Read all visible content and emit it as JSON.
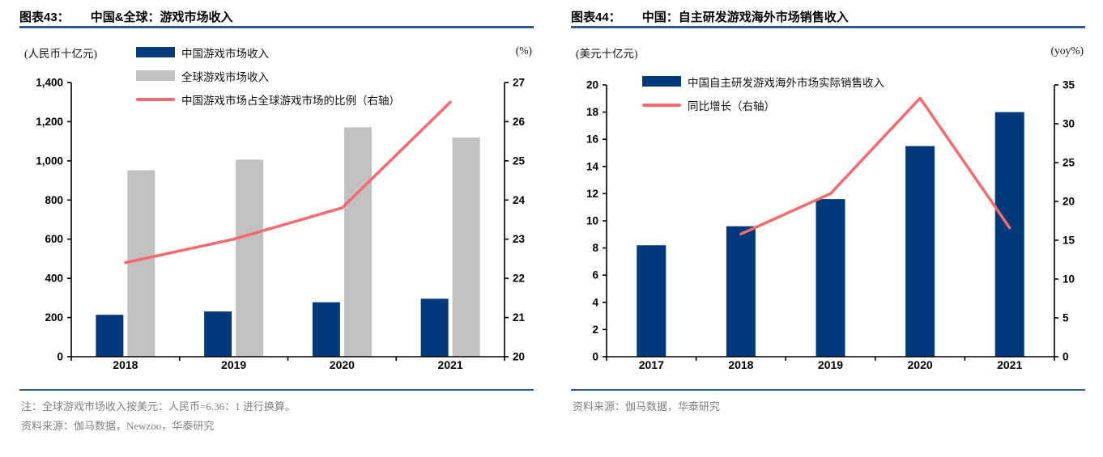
{
  "theme": {
    "rule_blue": "#2e5a93",
    "note_gray": "#808080",
    "axis_black": "#000000",
    "bar_navy": "#003a7a",
    "bar_gray": "#c1c1c1",
    "line_salmon": "#f8696b"
  },
  "chart_data": [
    {
      "figure_label": "图表43：",
      "title": "中国&全球：游戏市场收入",
      "type": "bar+line",
      "categories": [
        "2018",
        "2019",
        "2020",
        "2021"
      ],
      "bar_series": [
        {
          "name": "中国游戏市场收入",
          "color": "#003a7a",
          "values": [
            214,
            231,
            278,
            296
          ]
        },
        {
          "name": "全球游戏市场收入",
          "color": "#c1c1c1",
          "values": [
            952,
            1006,
            1171,
            1119
          ]
        }
      ],
      "line_series": [
        {
          "name": "中国游戏市场占全球游戏市场的比例（右轴）",
          "color": "#f8696b",
          "axis": "right",
          "values": [
            22.4,
            23.0,
            23.8,
            26.5
          ]
        }
      ],
      "left_axis": {
        "unit": "(人民币十亿元)",
        "min": 0,
        "max": 1400,
        "step": 200
      },
      "right_axis": {
        "unit": "(%)",
        "min": 20,
        "max": 27,
        "step": 1
      },
      "grid": false,
      "legend_position": "top-left-stacked",
      "note": "注：全球游戏市场收入按美元：人民币=6.36：1 进行换算。",
      "source": "资料来源：伽马数据，Newzoo，华泰研究"
    },
    {
      "figure_label": "图表44：",
      "title": "中国：自主研发游戏海外市场销售收入",
      "type": "bar+line",
      "categories": [
        "2017",
        "2018",
        "2019",
        "2020",
        "2021"
      ],
      "bar_series": [
        {
          "name": "中国自主研发游戏海外市场实际销售收入",
          "color": "#003a7a",
          "values": [
            8.2,
            9.6,
            11.6,
            15.5,
            18.0
          ]
        }
      ],
      "line_series": [
        {
          "name": "同比增长（右轴）",
          "color": "#f8696b",
          "axis": "right",
          "values": [
            null,
            15.8,
            21.0,
            33.3,
            16.6
          ]
        }
      ],
      "left_axis": {
        "unit": "(美元十亿元)",
        "min": 0,
        "max": 20,
        "step": 2
      },
      "right_axis": {
        "unit": "(yoy%)",
        "min": 0,
        "max": 35,
        "step": 5
      },
      "grid": false,
      "legend_position": "top-left-stacked",
      "note": "",
      "source": "资料来源：伽马数据，华泰研究"
    }
  ]
}
